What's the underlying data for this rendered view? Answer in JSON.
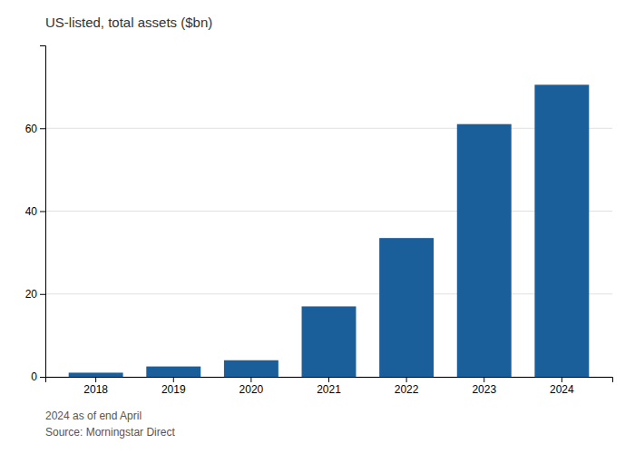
{
  "chart_data": {
    "type": "bar",
    "title": "US-listed, total assets ($bn)",
    "categories": [
      "2018",
      "2019",
      "2020",
      "2021",
      "2022",
      "2023",
      "2024"
    ],
    "values": [
      1.0,
      2.5,
      4.0,
      17.0,
      33.5,
      61.0,
      70.5
    ],
    "color": "#1a5e9a",
    "ylim": [
      0,
      80
    ],
    "yticks": [
      0,
      20,
      40,
      60
    ],
    "grid": true,
    "annotations": [
      "2024 as of end April",
      "Source: Morningstar Direct"
    ]
  }
}
